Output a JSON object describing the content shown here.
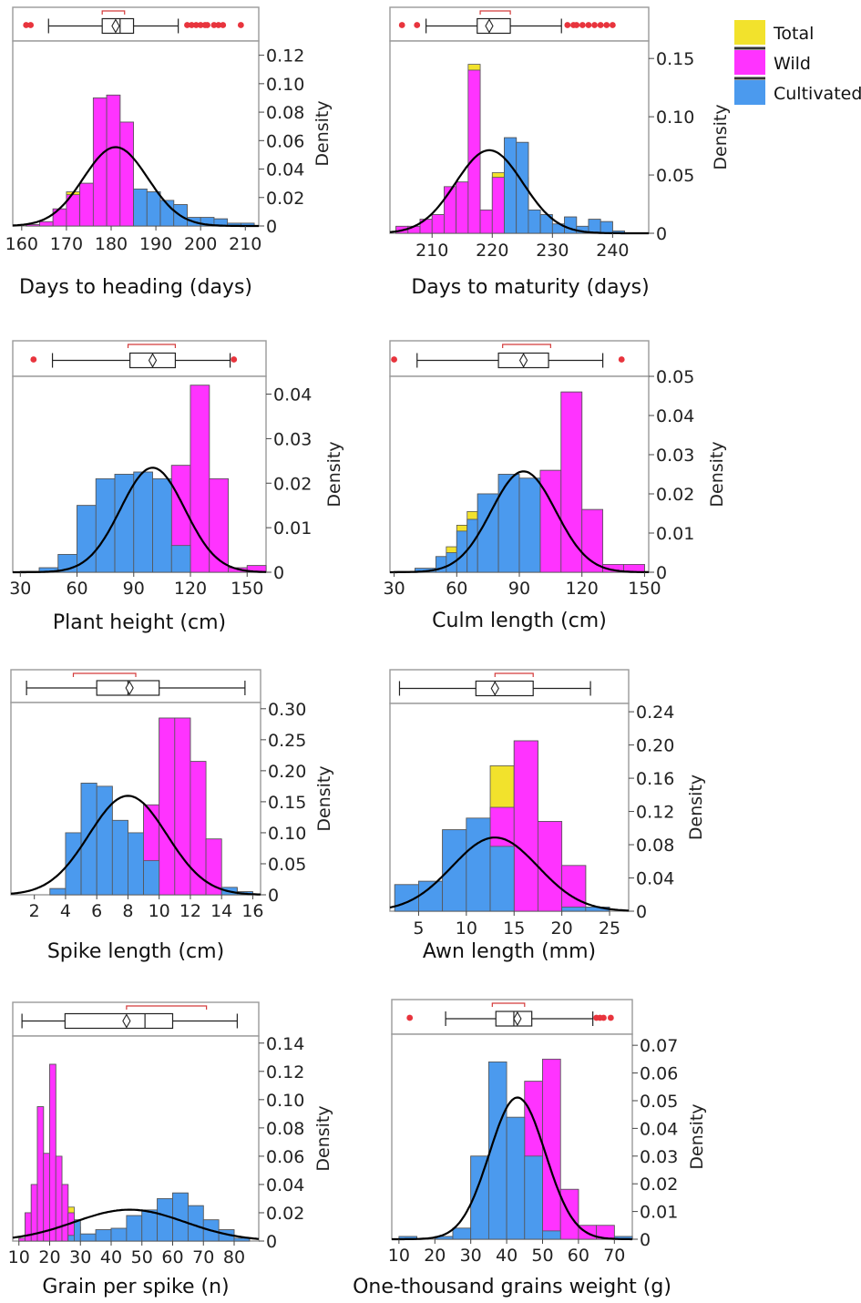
{
  "colors": {
    "total": "#f2e22c",
    "wild": "#ff33ff",
    "cultivated": "#4b9aee",
    "curve": "#000000",
    "outlier": "#e8343d",
    "bracket": "#d33a3a"
  },
  "legend": {
    "position": "top-right",
    "items": [
      {
        "label": "Total",
        "color": "#f2e22c"
      },
      {
        "label": "Wild",
        "color": "#ff33ff"
      },
      {
        "label": "Cultivated",
        "color": "#4b9aee"
      }
    ]
  },
  "chart_data": [
    {
      "type": "histogram",
      "xlabel": "Days to heading (days)",
      "ylabel": "Density",
      "xlim": [
        158,
        213
      ],
      "ylim": [
        0,
        0.13
      ],
      "xticks": [
        "160",
        "170",
        "180",
        "190",
        "200",
        "210"
      ],
      "yticks": [
        "0",
        "0.02",
        "0.04",
        "0.06",
        "0.08",
        "0.10",
        "0.12"
      ],
      "bin_edges": [
        158,
        161,
        164,
        167,
        170,
        173,
        176,
        179,
        182,
        185,
        188,
        191,
        194,
        197,
        200,
        203,
        206,
        209,
        212
      ],
      "total": [
        0,
        0.001,
        0.003,
        0.012,
        0.024,
        0.03,
        0.09,
        0.092,
        0.073,
        0.026,
        0.024,
        0.018,
        0.015,
        0.006,
        0.006,
        0.005,
        0.002,
        0.002
      ],
      "wild": [
        0,
        0.001,
        0.003,
        0.012,
        0.022,
        0.03,
        0.09,
        0.092,
        0.073,
        0.014,
        0.016,
        0,
        0,
        0,
        0,
        0,
        0,
        0
      ],
      "cultivated": [
        0,
        0,
        0,
        0,
        0,
        0,
        0,
        0,
        0,
        0.026,
        0.024,
        0.018,
        0.015,
        0.006,
        0.006,
        0.005,
        0.002,
        0.002
      ],
      "curve": {
        "mean": 181,
        "sd": 7.2
      },
      "boxplot": {
        "whisker_low": 166,
        "q1": 178,
        "median": 182,
        "q3": 185,
        "whisker_high": 195,
        "mean": 181,
        "bracket": [
          178,
          183
        ],
        "outliers": [
          161,
          162,
          197,
          198,
          199,
          200,
          201,
          201.5,
          203,
          204,
          205,
          209
        ]
      }
    },
    {
      "type": "histogram",
      "xlabel": "Days to maturity (days)",
      "ylabel": "Density",
      "xlim": [
        203,
        246
      ],
      "ylim": [
        0,
        0.165
      ],
      "xticks": [
        "210",
        "220",
        "230",
        "240"
      ],
      "yticks": [
        "0",
        "0.05",
        "0.10",
        "0.15"
      ],
      "bin_edges": [
        204,
        206,
        208,
        210,
        212,
        214,
        216,
        218,
        220,
        222,
        224,
        226,
        228,
        230,
        232,
        234,
        236,
        238,
        240,
        242
      ],
      "total": [
        0.006,
        0.006,
        0.012,
        0.016,
        0.04,
        0.044,
        0.145,
        0.02,
        0.052,
        0.082,
        0.078,
        0.02,
        0.016,
        0.008,
        0.014,
        0.006,
        0.012,
        0.01,
        0.002
      ],
      "wild": [
        0.006,
        0.006,
        0.012,
        0.016,
        0.04,
        0.044,
        0.14,
        0.02,
        0.048,
        0.055,
        0.048,
        0.02,
        0,
        0,
        0,
        0,
        0,
        0,
        0
      ],
      "cultivated": [
        0,
        0,
        0,
        0,
        0,
        0,
        0,
        0,
        0,
        0.082,
        0.078,
        0.02,
        0.016,
        0.008,
        0.014,
        0.006,
        0.012,
        0.01,
        0.002
      ],
      "curve": {
        "mean": 219.5,
        "sd": 5.6
      },
      "boxplot": {
        "whisker_low": 209,
        "q1": 217.5,
        "median": 219.5,
        "q3": 223,
        "whisker_high": 231.5,
        "mean": 219.5,
        "bracket": [
          218,
          223
        ],
        "outliers": [
          205,
          207.5,
          232.5,
          233.5,
          234,
          235,
          236,
          237,
          238,
          239,
          240
        ]
      }
    },
    {
      "type": "histogram",
      "xlabel": "Plant height (cm)",
      "ylabel": "Density",
      "xlim": [
        26,
        160
      ],
      "ylim": [
        0,
        0.044
      ],
      "xticks": [
        "30",
        "60",
        "90",
        "120",
        "150"
      ],
      "yticks": [
        "0",
        "0.01",
        "0.02",
        "0.03",
        "0.04"
      ],
      "bin_edges": [
        30,
        40,
        50,
        60,
        70,
        80,
        90,
        100,
        110,
        120,
        130,
        140,
        150,
        160
      ],
      "total": [
        0.0002,
        0.001,
        0.004,
        0.015,
        0.021,
        0.022,
        0.0225,
        0.021,
        0.024,
        0.042,
        0.021,
        0.001,
        0.0015
      ],
      "wild": [
        0,
        0,
        0,
        0,
        0,
        0.003,
        0.0105,
        0.0165,
        0.024,
        0.042,
        0.021,
        0.001,
        0.0015
      ],
      "cultivated": [
        0.0002,
        0.001,
        0.004,
        0.015,
        0.021,
        0.022,
        0.0225,
        0.021,
        0.006,
        0,
        0,
        0,
        0
      ],
      "curve": {
        "mean": 100,
        "sd": 17
      },
      "boxplot": {
        "whisker_low": 47,
        "q1": 88,
        "median": 100,
        "q3": 112,
        "whisker_high": 141,
        "mean": 100,
        "bracket": [
          87,
          112
        ],
        "outliers": [
          37,
          143
        ]
      }
    },
    {
      "type": "histogram",
      "xlabel": "Culm length (cm)",
      "ylabel": "Density",
      "xlim": [
        28,
        152
      ],
      "ylim": [
        0,
        0.05
      ],
      "xticks": [
        "30",
        "60",
        "90",
        "120",
        "150"
      ],
      "yticks": [
        "0",
        "0.01",
        "0.02",
        "0.03",
        "0.04",
        "0.05"
      ],
      "bin_edges": [
        30,
        40,
        50,
        55,
        60,
        65,
        70,
        80,
        90,
        100,
        110,
        120,
        130,
        140,
        150
      ],
      "total": [
        0.0002,
        0.001,
        0.004,
        0.0065,
        0.012,
        0.0155,
        0.02,
        0.025,
        0.024,
        0.026,
        0.046,
        0.016,
        0.002,
        0.002
      ],
      "wild": [
        0,
        0,
        0,
        0,
        0,
        0,
        0.003,
        0.008,
        0.0105,
        0.026,
        0.046,
        0.016,
        0.002,
        0.002
      ],
      "cultivated": [
        0.0002,
        0.001,
        0.004,
        0.005,
        0.0105,
        0.0135,
        0.02,
        0.025,
        0.024,
        0,
        0,
        0,
        0,
        0
      ],
      "curve": {
        "mean": 92,
        "sd": 15.5
      },
      "boxplot": {
        "whisker_low": 41,
        "q1": 80,
        "median": 92,
        "q3": 104,
        "whisker_high": 130,
        "mean": 92,
        "bracket": [
          82,
          105
        ],
        "outliers": [
          30,
          139
        ]
      }
    },
    {
      "type": "histogram",
      "xlabel": "Spike length (cm)",
      "ylabel": "Density",
      "xlim": [
        0.5,
        16.5
      ],
      "ylim": [
        0,
        0.31
      ],
      "xticks": [
        "2",
        "4",
        "6",
        "8",
        "10",
        "12",
        "14",
        "16"
      ],
      "yticks": [
        "0",
        "0.05",
        "0.10",
        "0.15",
        "0.20",
        "0.25",
        "0.30"
      ],
      "bin_edges": [
        1,
        2,
        3,
        4,
        5,
        6,
        7,
        8,
        9,
        10,
        11,
        12,
        13,
        14,
        15,
        16
      ],
      "total": [
        0,
        0,
        0.01,
        0.1,
        0.18,
        0.175,
        0.12,
        0.1,
        0.145,
        0.285,
        0.285,
        0.215,
        0.09,
        0.012,
        0.005,
        0
      ],
      "wild": [
        0,
        0,
        0,
        0,
        0,
        0,
        0,
        0.03,
        0.145,
        0.285,
        0.285,
        0.215,
        0.09,
        0.01,
        0,
        0
      ],
      "cultivated": [
        0,
        0,
        0.01,
        0.1,
        0.18,
        0.175,
        0.12,
        0.1,
        0.055,
        0,
        0,
        0,
        0,
        0.012,
        0.005,
        0
      ],
      "curve": {
        "mean": 8,
        "sd": 2.5
      },
      "boxplot": {
        "whisker_low": 1.5,
        "q1": 6,
        "median": 8,
        "q3": 10,
        "whisker_high": 15.5,
        "mean": 8.1,
        "bracket": [
          4.5,
          8.5
        ],
        "outliers": []
      }
    },
    {
      "type": "histogram",
      "xlabel": "Awn length (mm)",
      "ylabel": "Density",
      "xlim": [
        2,
        27
      ],
      "ylim": [
        0,
        0.25
      ],
      "xticks": [
        "5",
        "10",
        "15",
        "20",
        "25"
      ],
      "yticks": [
        "0",
        "0.04",
        "0.08",
        "0.12",
        "0.16",
        "0.20",
        "0.24"
      ],
      "bin_edges": [
        2.5,
        5,
        7.5,
        10,
        12.5,
        15,
        17.5,
        20,
        22.5,
        25
      ],
      "total": [
        0.032,
        0.036,
        0.098,
        0.112,
        0.175,
        0.205,
        0.108,
        0.055,
        0.005
      ],
      "wild": [
        0,
        0,
        0,
        0.045,
        0.125,
        0.205,
        0.108,
        0.055,
        0
      ],
      "cultivated": [
        0.032,
        0.036,
        0.098,
        0.112,
        0.078,
        0,
        0,
        0.005,
        0.005
      ],
      "curve": {
        "mean": 13,
        "sd": 4.5
      },
      "boxplot": {
        "whisker_low": 3,
        "q1": 11,
        "median": 13,
        "q3": 17,
        "whisker_high": 23,
        "mean": 13,
        "bracket": [
          13,
          17
        ],
        "outliers": []
      }
    },
    {
      "type": "histogram",
      "xlabel": "Grain per spike (n)",
      "ylabel": "Density",
      "xlim": [
        8,
        88
      ],
      "ylim": [
        0,
        0.145
      ],
      "xticks": [
        "10",
        "20",
        "30",
        "40",
        "50",
        "60",
        "70",
        "80"
      ],
      "yticks": [
        "0",
        "0.02",
        "0.04",
        "0.06",
        "0.08",
        "0.10",
        "0.12",
        "0.14"
      ],
      "bin_edges": [
        10,
        12,
        14,
        16,
        18,
        20,
        22,
        24,
        26,
        28,
        30,
        35,
        40,
        45,
        50,
        55,
        60,
        65,
        70,
        75,
        80,
        85
      ],
      "total": [
        0.002,
        0.02,
        0.04,
        0.095,
        0.062,
        0.125,
        0.06,
        0.04,
        0.024,
        0.015,
        0.005,
        0.008,
        0.009,
        0.018,
        0.022,
        0.03,
        0.034,
        0.025,
        0.015,
        0.008,
        0.002
      ],
      "wild": [
        0.002,
        0.02,
        0.04,
        0.095,
        0.062,
        0.125,
        0.06,
        0.04,
        0.02,
        0.01,
        0,
        0,
        0,
        0,
        0,
        0,
        0,
        0,
        0,
        0,
        0
      ],
      "cultivated": [
        0,
        0,
        0,
        0,
        0,
        0,
        0,
        0,
        0.004,
        0.015,
        0.005,
        0.008,
        0.009,
        0.018,
        0.022,
        0.03,
        0.034,
        0.025,
        0.015,
        0.008,
        0.002
      ],
      "curve": {
        "mean": 46,
        "sd": 18
      },
      "boxplot": {
        "whisker_low": 11,
        "q1": 25,
        "median": 51,
        "q3": 60,
        "whisker_high": 81,
        "mean": 45,
        "bracket": [
          45,
          71
        ],
        "outliers": []
      }
    },
    {
      "type": "histogram",
      "xlabel": "One-thousand grains weight (g)",
      "ylabel": "Density",
      "xlim": [
        8,
        75
      ],
      "ylim": [
        0,
        0.074
      ],
      "xticks": [
        "10",
        "20",
        "30",
        "40",
        "50",
        "60",
        "70"
      ],
      "yticks": [
        "0",
        "0.01",
        "0.02",
        "0.03",
        "0.04",
        "0.05",
        "0.06",
        "0.07"
      ],
      "bin_edges": [
        10,
        15,
        20,
        25,
        30,
        35,
        40,
        45,
        50,
        55,
        60,
        65,
        70,
        75
      ],
      "total": [
        0.001,
        0,
        0.001,
        0.004,
        0.03,
        0.064,
        0.044,
        0.057,
        0.065,
        0.018,
        0.005,
        0.005,
        0.001
      ],
      "wild": [
        0,
        0,
        0,
        0.001,
        0.004,
        0.018,
        0.032,
        0.057,
        0.065,
        0.018,
        0.005,
        0.005,
        0
      ],
      "cultivated": [
        0.001,
        0,
        0.001,
        0.004,
        0.03,
        0.064,
        0.044,
        0.03,
        0.003,
        0,
        0,
        0,
        0.001
      ],
      "curve": {
        "mean": 43,
        "sd": 7.8
      },
      "boxplot": {
        "whisker_low": 23,
        "q1": 37,
        "median": 42,
        "q3": 47,
        "whisker_high": 64,
        "mean": 43,
        "bracket": [
          36,
          45
        ],
        "outliers": [
          13,
          65,
          66,
          67,
          69
        ]
      }
    }
  ]
}
